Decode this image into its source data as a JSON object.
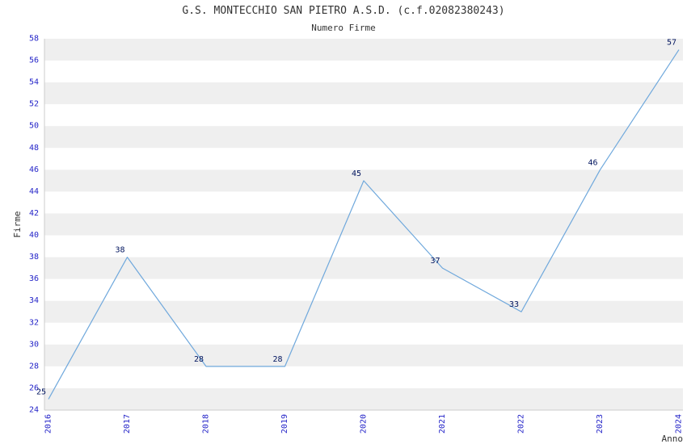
{
  "chart_data": {
    "type": "line",
    "title": "G.S. MONTECCHIO SAN PIETRO A.S.D. (c.f.02082380243)",
    "subtitle": "Numero Firme",
    "xlabel": "Anno",
    "ylabel": "Firme",
    "categories": [
      2016,
      2017,
      2018,
      2019,
      2020,
      2021,
      2022,
      2023,
      2024
    ],
    "values": [
      25,
      38,
      28,
      28,
      45,
      37,
      33,
      46,
      57
    ],
    "ylim": [
      24,
      58
    ],
    "ytick_step": 2,
    "grid": "horizontal-stripes",
    "legend": "none",
    "colors": {
      "line": "#6fa8dc",
      "tick_label": "#2424c8",
      "point_label": "#00145e",
      "stripe_even": "#efefef",
      "stripe_odd": "#ffffff",
      "axis": "#cccccc",
      "title_text": "#333333"
    }
  }
}
